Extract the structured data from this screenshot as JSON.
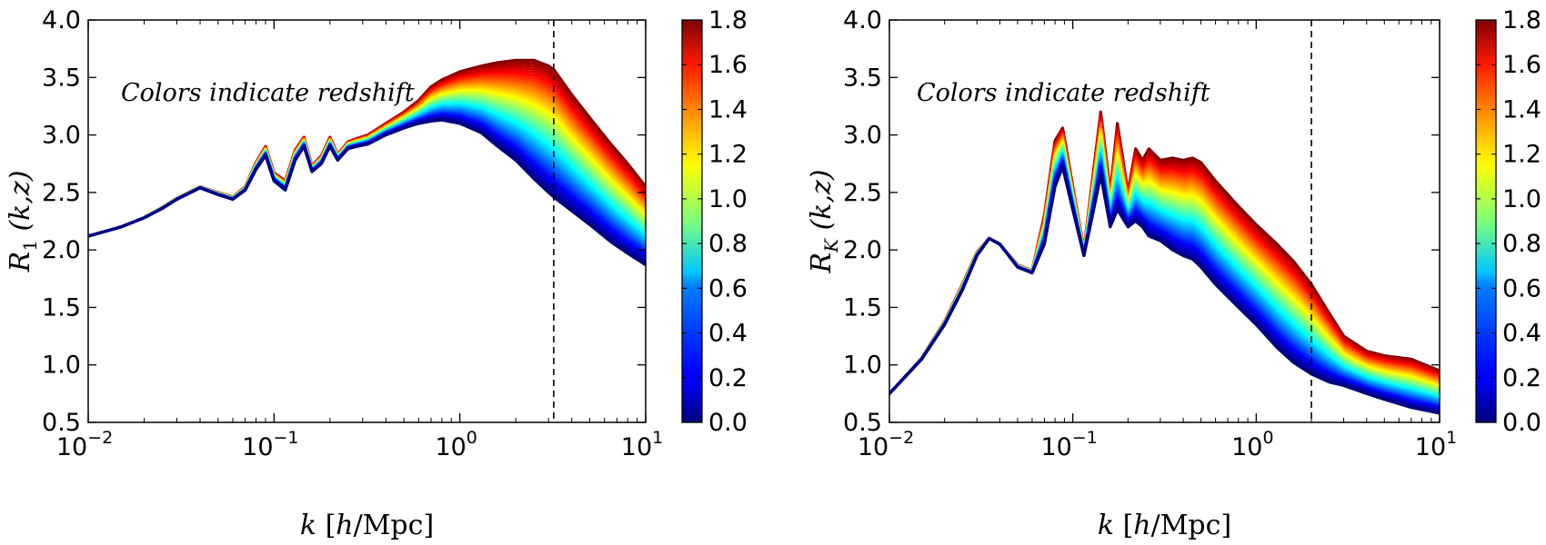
{
  "chart_data": [
    {
      "type": "line",
      "id": "left",
      "title": "",
      "xlabel": {
        "var": "k",
        "open": " [",
        "unit_h": "h",
        "unit_rest": "/Mpc]"
      },
      "ylabel": {
        "var": "R",
        "sub": "1",
        "args": " (k,z)"
      },
      "xscale": "log",
      "xlim": [
        0.01,
        10
      ],
      "ylim": [
        0.5,
        4.0
      ],
      "xticks": [
        0.01,
        0.1,
        1,
        10
      ],
      "xtick_labels": [
        {
          "base": "10",
          "exp": "−2"
        },
        {
          "base": "10",
          "exp": "−1"
        },
        {
          "base": "10",
          "exp": "0"
        },
        {
          "base": "10",
          "exp": "1"
        }
      ],
      "yticks": [
        0.5,
        1.0,
        1.5,
        2.0,
        2.5,
        3.0,
        3.5,
        4.0
      ],
      "ytick_labels": [
        "0.5",
        "1.0",
        "1.5",
        "2.0",
        "2.5",
        "3.0",
        "3.5",
        "4.0"
      ],
      "annotation": "Colors indicate redshift",
      "vline_x": 3.2,
      "colorbar": {
        "range": [
          0.0,
          1.8
        ],
        "ticks": [
          "0.0",
          "0.2",
          "0.4",
          "0.6",
          "0.8",
          "1.0",
          "1.2",
          "1.4",
          "1.6",
          "1.8"
        ],
        "colormap": "jet"
      },
      "band": {
        "description": "family of curves R(k,z) for z from 0.0 to 1.8",
        "k": [
          0.01,
          0.015,
          0.02,
          0.025,
          0.03,
          0.04,
          0.05,
          0.06,
          0.07,
          0.08,
          0.09,
          0.1,
          0.115,
          0.13,
          0.145,
          0.16,
          0.18,
          0.2,
          0.22,
          0.25,
          0.28,
          0.32,
          0.4,
          0.5,
          0.6,
          0.7,
          0.8,
          1.0,
          1.3,
          1.6,
          2.0,
          2.5,
          3.0,
          3.2,
          4.0,
          5.0,
          6.5,
          8.0,
          10.0
        ],
        "z0_values": [
          2.12,
          2.2,
          2.28,
          2.36,
          2.44,
          2.54,
          2.48,
          2.44,
          2.52,
          2.7,
          2.82,
          2.6,
          2.52,
          2.78,
          2.9,
          2.68,
          2.75,
          2.9,
          2.78,
          2.88,
          2.9,
          2.92,
          3.0,
          3.06,
          3.1,
          3.12,
          3.13,
          3.1,
          3.02,
          2.9,
          2.78,
          2.62,
          2.5,
          2.46,
          2.34,
          2.22,
          2.07,
          1.97,
          1.87
        ],
        "z18_values": [
          2.12,
          2.2,
          2.28,
          2.37,
          2.45,
          2.55,
          2.5,
          2.46,
          2.55,
          2.76,
          2.9,
          2.67,
          2.6,
          2.87,
          2.98,
          2.73,
          2.82,
          2.98,
          2.83,
          2.94,
          2.97,
          3.0,
          3.1,
          3.2,
          3.3,
          3.42,
          3.48,
          3.55,
          3.6,
          3.63,
          3.65,
          3.65,
          3.6,
          3.57,
          3.35,
          3.15,
          2.92,
          2.75,
          2.55
        ]
      }
    },
    {
      "type": "line",
      "id": "right",
      "title": "",
      "xlabel": {
        "var": "k",
        "open": " [",
        "unit_h": "h",
        "unit_rest": "/Mpc]"
      },
      "ylabel": {
        "var": "R",
        "sub": "K",
        "args": " (k,z)"
      },
      "xscale": "log",
      "xlim": [
        0.01,
        10
      ],
      "ylim": [
        0.5,
        4.0
      ],
      "xticks": [
        0.01,
        0.1,
        1,
        10
      ],
      "xtick_labels": [
        {
          "base": "10",
          "exp": "−2"
        },
        {
          "base": "10",
          "exp": "−1"
        },
        {
          "base": "10",
          "exp": "0"
        },
        {
          "base": "10",
          "exp": "1"
        }
      ],
      "yticks": [
        0.5,
        1.0,
        1.5,
        2.0,
        2.5,
        3.0,
        3.5,
        4.0
      ],
      "ytick_labels": [
        "0.5",
        "1.0",
        "1.5",
        "2.0",
        "2.5",
        "3.0",
        "3.5",
        "4.0"
      ],
      "annotation": "Colors indicate redshift",
      "vline_x": 2.0,
      "colorbar": {
        "range": [
          0.0,
          1.8
        ],
        "ticks": [
          "0.0",
          "0.2",
          "0.4",
          "0.6",
          "0.8",
          "1.0",
          "1.2",
          "1.4",
          "1.6",
          "1.8"
        ],
        "colormap": "jet"
      },
      "band": {
        "description": "family of curves R_K(k,z) for z from 0.0 to 1.8",
        "k": [
          0.01,
          0.015,
          0.02,
          0.025,
          0.03,
          0.035,
          0.04,
          0.05,
          0.06,
          0.07,
          0.08,
          0.088,
          0.1,
          0.115,
          0.13,
          0.142,
          0.16,
          0.175,
          0.2,
          0.22,
          0.24,
          0.26,
          0.3,
          0.35,
          0.4,
          0.45,
          0.5,
          0.6,
          0.8,
          1.0,
          1.3,
          1.6,
          2.0,
          2.5,
          3.0,
          4.0,
          5.0,
          7.0,
          10.0
        ],
        "z0_values": [
          0.75,
          1.05,
          1.35,
          1.65,
          1.95,
          2.1,
          2.05,
          1.85,
          1.8,
          2.05,
          2.55,
          2.72,
          2.35,
          1.95,
          2.35,
          2.65,
          2.2,
          2.35,
          2.2,
          2.25,
          2.2,
          2.12,
          2.08,
          2.0,
          1.95,
          1.92,
          1.85,
          1.7,
          1.5,
          1.35,
          1.15,
          1.02,
          0.92,
          0.85,
          0.82,
          0.75,
          0.7,
          0.63,
          0.58
        ],
        "z18_values": [
          0.75,
          1.06,
          1.38,
          1.7,
          1.98,
          2.1,
          2.05,
          1.87,
          1.82,
          2.3,
          2.95,
          3.06,
          2.55,
          2.0,
          2.7,
          3.2,
          2.5,
          3.1,
          2.5,
          2.88,
          2.78,
          2.88,
          2.78,
          2.8,
          2.78,
          2.8,
          2.76,
          2.6,
          2.38,
          2.22,
          2.05,
          1.9,
          1.7,
          1.45,
          1.25,
          1.12,
          1.08,
          1.05,
          0.95
        ]
      }
    }
  ]
}
